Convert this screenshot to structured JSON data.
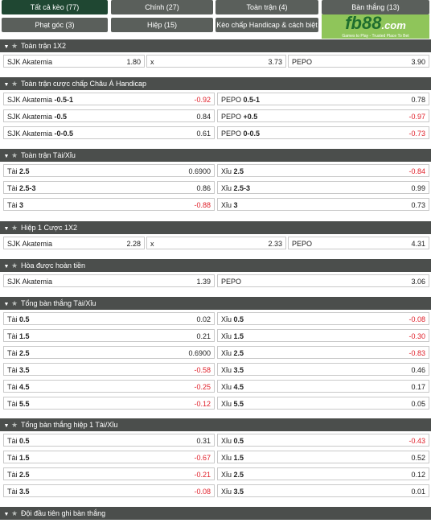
{
  "tabs": [
    {
      "label": "Tất cả kèo (77)",
      "active": true
    },
    {
      "label": "Chính (27)"
    },
    {
      "label": "Toàn trận (4)"
    },
    {
      "label": "Bàn thắng (13)"
    },
    {
      "label": "Phạt góc (3)"
    },
    {
      "label": "Hiệp (15)"
    },
    {
      "label": "Kèo chấp Handicap & cách biệt (3)"
    }
  ],
  "logo": {
    "brand": "fb88",
    "domain": ".com",
    "tagline": "Games to Play - Trusted Place To Bet"
  },
  "sections": [
    {
      "title": "Toàn trận 1X2",
      "rows": [
        {
          "three": true,
          "cells": [
            {
              "label": "SJK Akatemia",
              "value": "1.80"
            },
            {
              "label": "x",
              "value": "3.73"
            },
            {
              "label": "PEPO",
              "value": "3.90"
            }
          ]
        }
      ]
    },
    {
      "title": "Toàn trận cược chấp Châu Á Handicap",
      "rows": [
        {
          "cells": [
            {
              "label": "SJK Akatemia",
              "line": "-0.5-1",
              "value": "-0.92",
              "neg": true
            },
            {
              "label": "PEPO",
              "line": "0.5-1",
              "value": "0.78"
            }
          ]
        },
        {
          "cells": [
            {
              "label": "SJK Akatemia",
              "line": "-0.5",
              "value": "0.84"
            },
            {
              "label": "PEPO",
              "line": "+0.5",
              "value": "-0.97",
              "neg": true
            }
          ]
        },
        {
          "cells": [
            {
              "label": "SJK Akatemia",
              "line": "-0-0.5",
              "value": "0.61"
            },
            {
              "label": "PEPO",
              "line": "0-0.5",
              "value": "-0.73",
              "neg": true
            }
          ]
        }
      ]
    },
    {
      "title": "Toàn trận Tài/Xỉu",
      "rows": [
        {
          "cells": [
            {
              "label": "Tài",
              "line": "2.5",
              "value": "0.6900"
            },
            {
              "label": "Xỉu",
              "line": "2.5",
              "value": "-0.84",
              "neg": true
            }
          ]
        },
        {
          "cells": [
            {
              "label": "Tài",
              "line": "2.5-3",
              "value": "0.86"
            },
            {
              "label": "Xỉu",
              "line": "2.5-3",
              "value": "0.99"
            }
          ]
        },
        {
          "cells": [
            {
              "label": "Tài",
              "line": "3",
              "value": "-0.88",
              "neg": true
            },
            {
              "label": "Xỉu",
              "line": "3",
              "value": "0.73"
            }
          ]
        }
      ]
    },
    {
      "title": "Hiệp 1 Cược 1X2",
      "rows": [
        {
          "three": true,
          "cells": [
            {
              "label": "SJK Akatemia",
              "value": "2.28"
            },
            {
              "label": "x",
              "value": "2.33"
            },
            {
              "label": "PEPO",
              "value": "4.31"
            }
          ]
        }
      ]
    },
    {
      "title": "Hòa được hoàn tiền",
      "rows": [
        {
          "cells": [
            {
              "label": "SJK Akatemia",
              "value": "1.39"
            },
            {
              "label": "PEPO",
              "value": "3.06"
            }
          ]
        }
      ]
    },
    {
      "title": "Tổng bàn thắng Tài/Xỉu",
      "rows": [
        {
          "cells": [
            {
              "label": "Tài",
              "line": "0.5",
              "value": "0.02"
            },
            {
              "label": "Xỉu",
              "line": "0.5",
              "value": "-0.08",
              "neg": true
            }
          ]
        },
        {
          "cells": [
            {
              "label": "Tài",
              "line": "1.5",
              "value": "0.21"
            },
            {
              "label": "Xỉu",
              "line": "1.5",
              "value": "-0.30",
              "neg": true
            }
          ]
        },
        {
          "cells": [
            {
              "label": "Tài",
              "line": "2.5",
              "value": "0.6900"
            },
            {
              "label": "Xỉu",
              "line": "2.5",
              "value": "-0.83",
              "neg": true
            }
          ]
        },
        {
          "cells": [
            {
              "label": "Tài",
              "line": "3.5",
              "value": "-0.58",
              "neg": true
            },
            {
              "label": "Xỉu",
              "line": "3.5",
              "value": "0.46"
            }
          ]
        },
        {
          "cells": [
            {
              "label": "Tài",
              "line": "4.5",
              "value": "-0.25",
              "neg": true
            },
            {
              "label": "Xỉu",
              "line": "4.5",
              "value": "0.17"
            }
          ]
        },
        {
          "cells": [
            {
              "label": "Tài",
              "line": "5.5",
              "value": "-0.12",
              "neg": true
            },
            {
              "label": "Xỉu",
              "line": "5.5",
              "value": "0.05"
            }
          ]
        }
      ]
    },
    {
      "title": "Tổng bàn thắng hiệp 1 Tài/Xỉu",
      "rows": [
        {
          "cells": [
            {
              "label": "Tài",
              "line": "0.5",
              "value": "0.31"
            },
            {
              "label": "Xỉu",
              "line": "0.5",
              "value": "-0.43",
              "neg": true
            }
          ]
        },
        {
          "cells": [
            {
              "label": "Tài",
              "line": "1.5",
              "value": "-0.67",
              "neg": true
            },
            {
              "label": "Xỉu",
              "line": "1.5",
              "value": "0.52"
            }
          ]
        },
        {
          "cells": [
            {
              "label": "Tài",
              "line": "2.5",
              "value": "-0.21",
              "neg": true
            },
            {
              "label": "Xỉu",
              "line": "2.5",
              "value": "0.12"
            }
          ]
        },
        {
          "cells": [
            {
              "label": "Tài",
              "line": "3.5",
              "value": "-0.08",
              "neg": true
            },
            {
              "label": "Xỉu",
              "line": "3.5",
              "value": "0.01"
            }
          ]
        }
      ]
    },
    {
      "title": "Đội đầu tiên ghi bàn thắng",
      "rows": []
    }
  ],
  "colors": {
    "negative": "#e0202a",
    "header": "#4b4e4c",
    "active_tab": "#1f4732",
    "tab": "#5a5f5b",
    "logo_bg": "#8fc55a"
  }
}
